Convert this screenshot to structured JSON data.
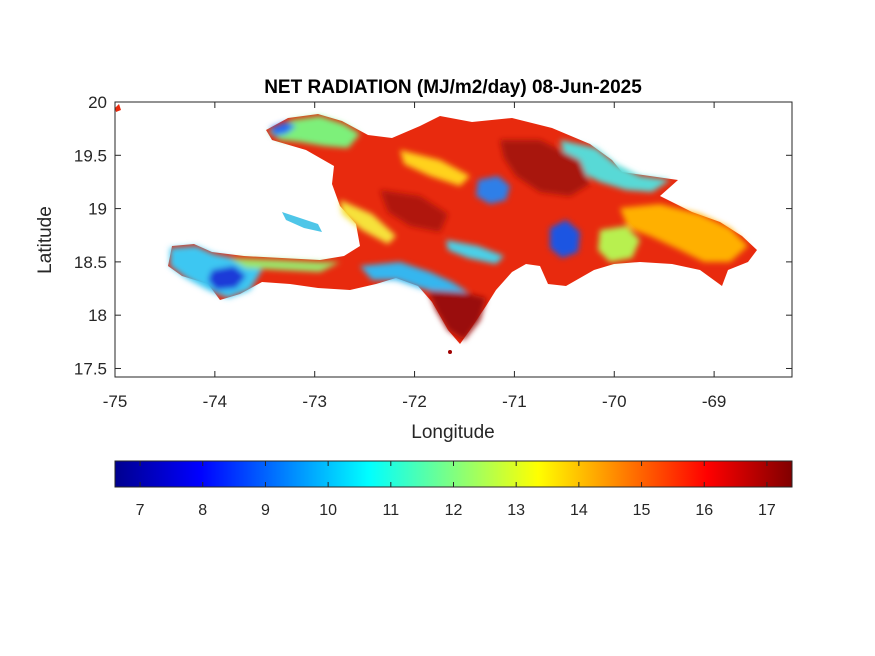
{
  "chart_data": {
    "type": "heatmap",
    "title": "NET RADIATION (MJ/m2/day) 08-Jun-2025",
    "xlabel": "Longitude",
    "ylabel": "Latitude",
    "xlim": [
      -75,
      -68.22
    ],
    "ylim": [
      17.42,
      20
    ],
    "x_ticks": [
      -75,
      -74,
      -73,
      -72,
      -71,
      -70,
      -69
    ],
    "x_tick_labels": [
      "-75",
      "-74",
      "-73",
      "-72",
      "-71",
      "-70",
      "-69"
    ],
    "y_ticks": [
      17.5,
      18,
      18.5,
      19,
      19.5,
      20
    ],
    "y_tick_labels": [
      "17.5",
      "18",
      "18.5",
      "19",
      "19.5",
      "20"
    ],
    "colormap": "jet",
    "colorbar": {
      "range": [
        6.6,
        17.4
      ],
      "ticks": [
        7,
        8,
        9,
        10,
        11,
        12,
        13,
        14,
        15,
        16,
        17
      ],
      "tick_labels": [
        "7",
        "8",
        "9",
        "10",
        "11",
        "12",
        "13",
        "14",
        "15",
        "16",
        "17"
      ],
      "placement": "bottom"
    },
    "grid": false,
    "regions": [
      {
        "lon": -71.0,
        "lat": 19.45,
        "value": 16.5
      },
      {
        "lon": -71.9,
        "lat": 19.0,
        "value": 16.0
      },
      {
        "lon": -71.3,
        "lat": 18.15,
        "value": 16.8
      },
      {
        "lon": -69.8,
        "lat": 18.85,
        "value": 15.2
      },
      {
        "lon": -70.5,
        "lat": 18.7,
        "value": 9.0
      },
      {
        "lon": -71.3,
        "lat": 19.2,
        "value": 9.5
      },
      {
        "lon": -73.1,
        "lat": 19.8,
        "value": 11.5
      },
      {
        "lon": -73.8,
        "lat": 18.35,
        "value": 8.5
      },
      {
        "lon": -74.3,
        "lat": 18.5,
        "value": 10.0
      },
      {
        "lon": -70.4,
        "lat": 19.3,
        "value": 11.5
      },
      {
        "lon": -72.6,
        "lat": 18.9,
        "value": 12.5
      }
    ]
  }
}
